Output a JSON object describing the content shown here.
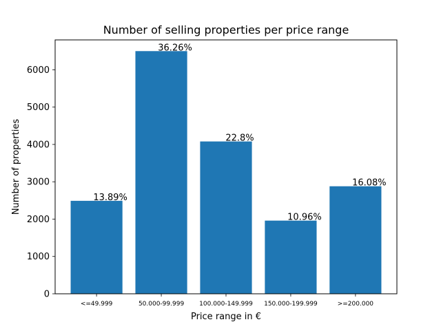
{
  "chart_data": {
    "type": "bar",
    "title": "Number of selling properties per price range",
    "xlabel": "Price range in €",
    "ylabel": "Number of properties",
    "categories": [
      "<=49.999",
      "50.000-99.999",
      "100.000-149.999",
      "150.000-199.999",
      ">=200.000"
    ],
    "values": [
      2490,
      6500,
      4080,
      1960,
      2880
    ],
    "data_labels": [
      "13.89%",
      "36.26%",
      "22.8%",
      "10.96%",
      "16.08%"
    ],
    "yticks": [
      0,
      1000,
      2000,
      3000,
      4000,
      5000,
      6000
    ],
    "ylim": [
      0,
      6800
    ],
    "bar_color": "#1f77b4",
    "grid": false,
    "legend": "none"
  }
}
